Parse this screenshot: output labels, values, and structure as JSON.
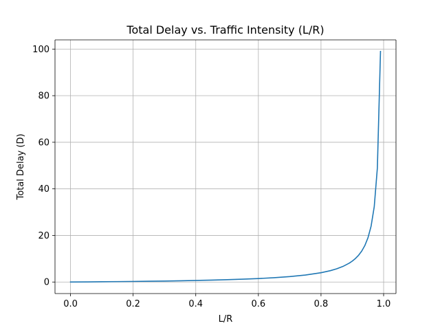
{
  "chart_data": {
    "type": "line",
    "title": "Total Delay vs. Traffic Intensity (L/R)",
    "xlabel": "L/R",
    "ylabel": "Total Delay (D)",
    "xlim": [
      -0.0495,
      1.0395
    ],
    "ylim": [
      -4.95,
      103.95
    ],
    "grid": true,
    "x_ticks": [
      0.0,
      0.2,
      0.4,
      0.6,
      0.8,
      1.0
    ],
    "x_tick_labels": [
      "0.0",
      "0.2",
      "0.4",
      "0.6",
      "0.8",
      "1.0"
    ],
    "y_ticks": [
      0,
      20,
      40,
      60,
      80,
      100
    ],
    "y_tick_labels": [
      "0",
      "20",
      "40",
      "60",
      "80",
      "100"
    ],
    "series": [
      {
        "color": "#1f77b4",
        "x": [
          0.0,
          0.05,
          0.1,
          0.15,
          0.2,
          0.25,
          0.3,
          0.35,
          0.4,
          0.45,
          0.5,
          0.55,
          0.6,
          0.65,
          0.7,
          0.75,
          0.8,
          0.83,
          0.85,
          0.87,
          0.89,
          0.9,
          0.91,
          0.92,
          0.93,
          0.94,
          0.95,
          0.96,
          0.97,
          0.98,
          0.99
        ],
        "y": [
          0.0,
          0.053,
          0.111,
          0.176,
          0.25,
          0.333,
          0.429,
          0.538,
          0.667,
          0.818,
          1.0,
          1.222,
          1.5,
          1.857,
          2.333,
          3.0,
          4.0,
          4.882,
          5.667,
          6.692,
          8.091,
          9.0,
          10.111,
          11.5,
          13.286,
          15.667,
          19.0,
          24.0,
          32.333,
          49.0,
          99.0
        ]
      }
    ]
  }
}
